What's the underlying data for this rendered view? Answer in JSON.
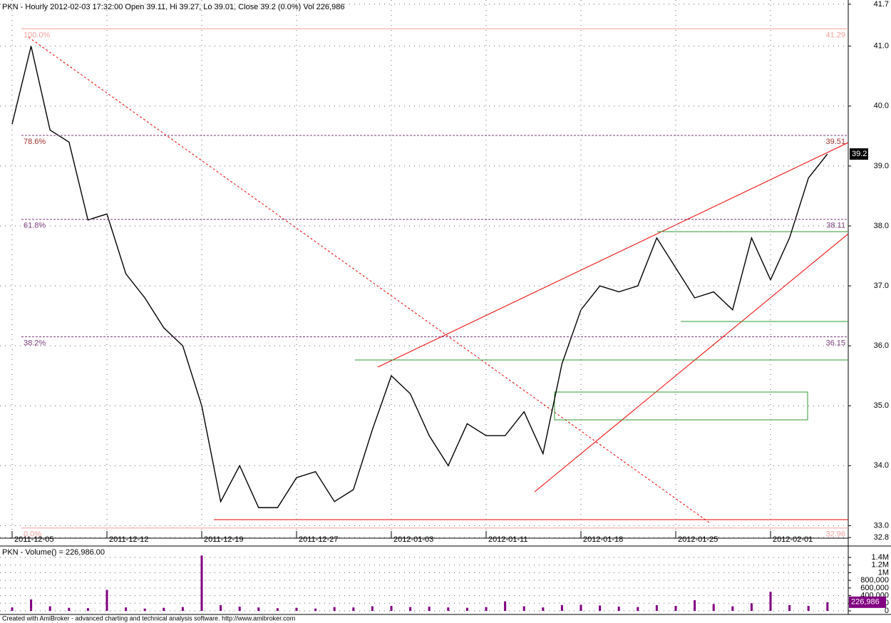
{
  "chart_data": [
    {
      "type": "line",
      "title": "PKN - Hourly 2012-02-03 17:32:00 Open 39.11, Hi 39.27, Lo 39.01, Close 39.2 (0.0%) Vol 226,986",
      "categories": [
        "2011-12-05",
        null,
        null,
        null,
        null,
        "2011-12-12",
        null,
        null,
        null,
        null,
        "2011-12-19",
        null,
        null,
        null,
        null,
        "2011-12-27",
        null,
        null,
        null,
        null,
        "2012-01-03",
        null,
        null,
        null,
        null,
        "2012-01-11",
        null,
        null,
        null,
        null,
        "2012-01-18",
        null,
        null,
        null,
        null,
        "2012-01-25",
        null,
        null,
        null,
        null,
        "2012-02-01",
        null,
        null,
        null
      ],
      "values": [
        39.7,
        41.0,
        39.6,
        39.4,
        38.1,
        38.2,
        37.2,
        36.8,
        36.3,
        36.0,
        35.0,
        33.4,
        34.0,
        33.3,
        33.3,
        33.8,
        33.9,
        33.4,
        33.6,
        34.6,
        35.5,
        35.2,
        34.5,
        34.0,
        34.7,
        34.5,
        34.5,
        34.9,
        34.2,
        35.7,
        36.6,
        37.0,
        36.9,
        37.0,
        37.8,
        37.3,
        36.8,
        36.9,
        36.6,
        37.8,
        37.1,
        37.8,
        38.8,
        39.2
      ],
      "color": "#000000",
      "ylim": [
        32.79,
        41.77
      ],
      "yticks": [
        32.8,
        {
          "value": 33,
          "label": "33.0"
        },
        {
          "value": 34,
          "label": "34.0"
        },
        {
          "value": 35,
          "label": "35.0"
        },
        {
          "value": 36,
          "label": "36.0"
        },
        {
          "value": 37,
          "label": "37.0"
        },
        {
          "value": 38,
          "label": "38.0"
        },
        {
          "value": 39,
          "label": "39.0"
        },
        {
          "value": 40,
          "label": "40.0"
        },
        {
          "value": 41,
          "label": "41.0"
        },
        41.7
      ],
      "grid": true,
      "fib_levels": [
        {
          "label": "100.0%",
          "value": 41.29
        },
        {
          "label": "78.6%",
          "value": 39.51
        },
        {
          "label": "61.8%",
          "value": 38.11
        },
        {
          "label": "38.2%",
          "value": 36.15
        },
        {
          "label": "0.0%",
          "value": 32.96
        }
      ]
    },
    {
      "type": "bar",
      "title": "PKN - Volume() = 226,986.00",
      "values": [
        90000,
        300000,
        120000,
        80000,
        70000,
        550000,
        90000,
        60000,
        80000,
        100000,
        1450000,
        150000,
        110000,
        90000,
        70000,
        80000,
        60000,
        100000,
        90000,
        120000,
        130000,
        100000,
        110000,
        90000,
        80000,
        100000,
        250000,
        120000,
        90000,
        150000,
        160000,
        140000,
        110000,
        100000,
        150000,
        130000,
        280000,
        180000,
        120000,
        200000,
        500000,
        150000,
        130000,
        226986
      ],
      "last_value_label": "226,986",
      "color": "#800080",
      "ylim": [
        0,
        1680000
      ],
      "yticks": [
        0,
        {
          "value": 200000,
          "label": "200,000"
        },
        {
          "value": 400000,
          "label": "400,000"
        },
        {
          "value": 600000,
          "label": "600,000"
        },
        {
          "value": 800000,
          "label": "800,000"
        },
        {
          "value": 1000000,
          "label": "1M"
        },
        {
          "value": 1200000,
          "label": "1.2M"
        },
        {
          "value": 1400000,
          "label": "1.4M"
        }
      ],
      "grid": true
    }
  ],
  "footer": "Created with AmiBroker - advanced charting and technical analysis software. http://www.amibroker.com"
}
